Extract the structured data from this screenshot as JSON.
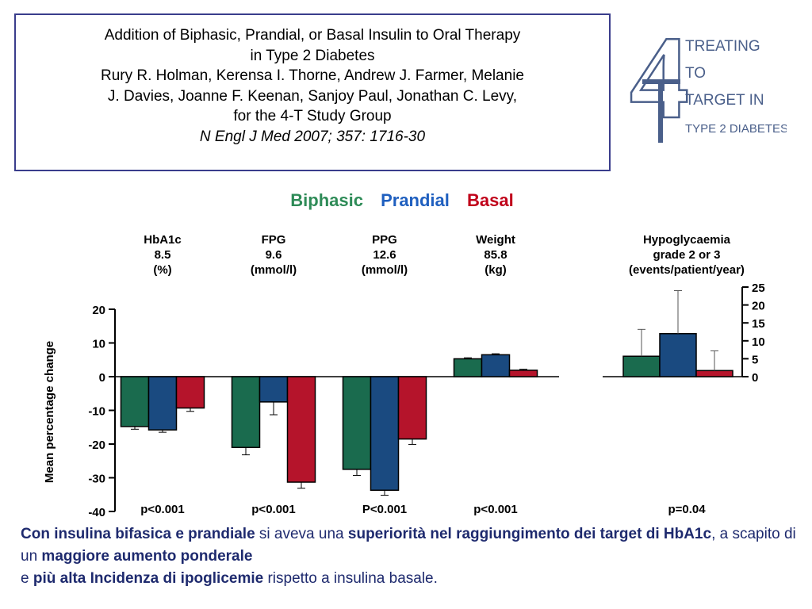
{
  "citation": {
    "title_line1": "Addition of Biphasic, Prandial, or Basal Insulin to Oral Therapy",
    "title_line2": "in Type 2 Diabetes",
    "authors_line1": "Rury R. Holman, Kerensa I. Thorne, Andrew J. Farmer, Melanie",
    "authors_line2": "J. Davies, Joanne F. Keenan, Sanjoy Paul, Jonathan C. Levy,",
    "authors_line3": "for the 4-T Study Group",
    "journal": "N Engl J Med 2007; 357: 1716-30"
  },
  "logo": {
    "numeral": "4",
    "line1": "TREATING",
    "line2": "TO",
    "line3": "TARGET IN",
    "line4": "TYPE 2 DIABETES"
  },
  "legend": [
    {
      "label": "Biphasic",
      "color": "#2e8b57"
    },
    {
      "label": "Prandial",
      "color": "#1f5fbf"
    },
    {
      "label": "Basal",
      "color": "#c0001a"
    }
  ],
  "colors": {
    "biphasic": "#1a6b4e",
    "prandial": "#1a4a80",
    "basal": "#b5142b",
    "citation_border": "#3a3d8c",
    "conclusion_text": "#1e2a6e"
  },
  "chart_data": [
    {
      "type": "bar",
      "ylabel": "Mean percentage change",
      "ylim": [
        -40,
        20
      ],
      "yticks": [
        20,
        10,
        0,
        -10,
        -20,
        -30,
        -40
      ],
      "categories": [
        {
          "line1": "HbA1c",
          "line2": "8.5",
          "line3": "(%)",
          "pvalue": "p<0.001"
        },
        {
          "line1": "FPG",
          "line2": "9.6",
          "line3": "(mmol/l)",
          "pvalue": "p<0.001"
        },
        {
          "line1": "PPG",
          "line2": "12.6",
          "line3": "(mmol/l)",
          "pvalue": "P<0.001"
        },
        {
          "line1": "Weight",
          "line2": "85.8",
          "line3": "(kg)",
          "pvalue": "p<0.001"
        }
      ],
      "series": [
        {
          "name": "Biphasic",
          "values": [
            -14.8,
            -21.0,
            -27.5,
            5.3
          ],
          "errors": [
            0.8,
            2.2,
            1.8,
            0.3
          ]
        },
        {
          "name": "Prandial",
          "values": [
            -15.8,
            -7.5,
            -33.7,
            6.5
          ],
          "errors": [
            0.7,
            3.8,
            1.5,
            0.3
          ]
        },
        {
          "name": "Basal",
          "values": [
            -9.3,
            -31.3,
            -18.5,
            1.9
          ],
          "errors": [
            1.0,
            1.8,
            1.6,
            0.3
          ]
        }
      ]
    },
    {
      "type": "bar",
      "title_line1": "Hypoglycaemia",
      "title_line2": "grade 2 or 3",
      "title_line3": "(events/patient/year)",
      "ylim": [
        0,
        25
      ],
      "yticks": [
        25,
        20,
        15,
        10,
        5,
        0
      ],
      "pvalue": "p=0.04",
      "series": [
        {
          "name": "Biphasic",
          "value": 5.7,
          "error": 7.5
        },
        {
          "name": "Prandial",
          "value": 12.0,
          "error": 12.0
        },
        {
          "name": "Basal",
          "value": 1.7,
          "error": 5.5
        }
      ]
    }
  ],
  "conclusion": {
    "p1_bold": "Con insulina bifasica e prandiale",
    "p1_normal": " si aveva una ",
    "p2_bold": "superiorità nel raggiungimento dei target di HbA1c",
    "p2_normal": ", a scapito di un ",
    "p3_bold": "maggiore aumento ponderale",
    "p4_normal": "e ",
    "p4_bold": "più alta Incidenza  di ipoglicemie",
    "p4_tail": " rispetto a  insulina basale."
  }
}
